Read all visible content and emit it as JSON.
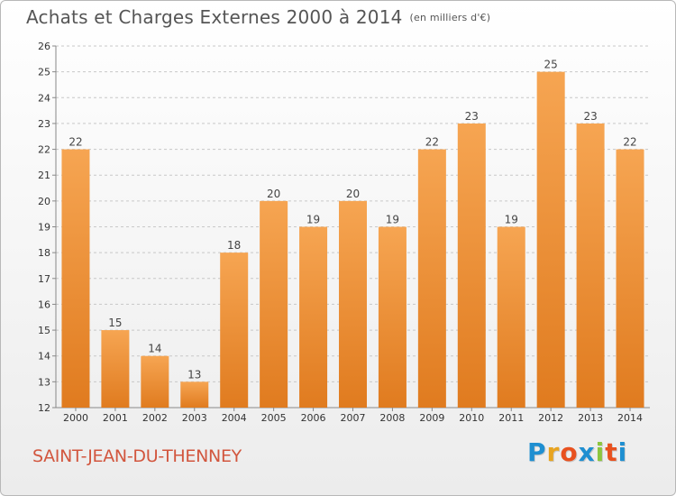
{
  "title": "Achats et Charges Externes 2000 à 2014",
  "unit": "(en milliers d'€)",
  "commune": "SAINT-JEAN-DU-THENNEY",
  "logo": {
    "letters": [
      "P",
      "r",
      "o",
      "x",
      "i",
      "t",
      "i"
    ],
    "colors": [
      "#1f8fd1",
      "#e8a41f",
      "#e8511f",
      "#1f8fd1",
      "#8cc63f",
      "#e8511f",
      "#1f8fd1"
    ]
  },
  "colors": {
    "bar_light": "#f6a552",
    "bar_dark": "#e07b1f",
    "grid": "#c8c8c8",
    "title": "#555555",
    "commune": "#d2563e"
  },
  "chart_data": {
    "type": "bar",
    "title": "Achats et Charges Externes 2000 à 2014",
    "categories": [
      "2000",
      "2001",
      "2002",
      "2003",
      "2004",
      "2005",
      "2006",
      "2007",
      "2008",
      "2009",
      "2010",
      "2011",
      "2012",
      "2013",
      "2014"
    ],
    "values": [
      22,
      15,
      14,
      13,
      18,
      20,
      19,
      20,
      19,
      22,
      23,
      19,
      25,
      23,
      22
    ],
    "xlabel": "",
    "ylabel": "",
    "ylim": [
      12,
      26
    ],
    "yticks": [
      12,
      13,
      14,
      15,
      16,
      17,
      18,
      19,
      20,
      21,
      22,
      23,
      24,
      25,
      26
    ],
    "grid": true
  }
}
